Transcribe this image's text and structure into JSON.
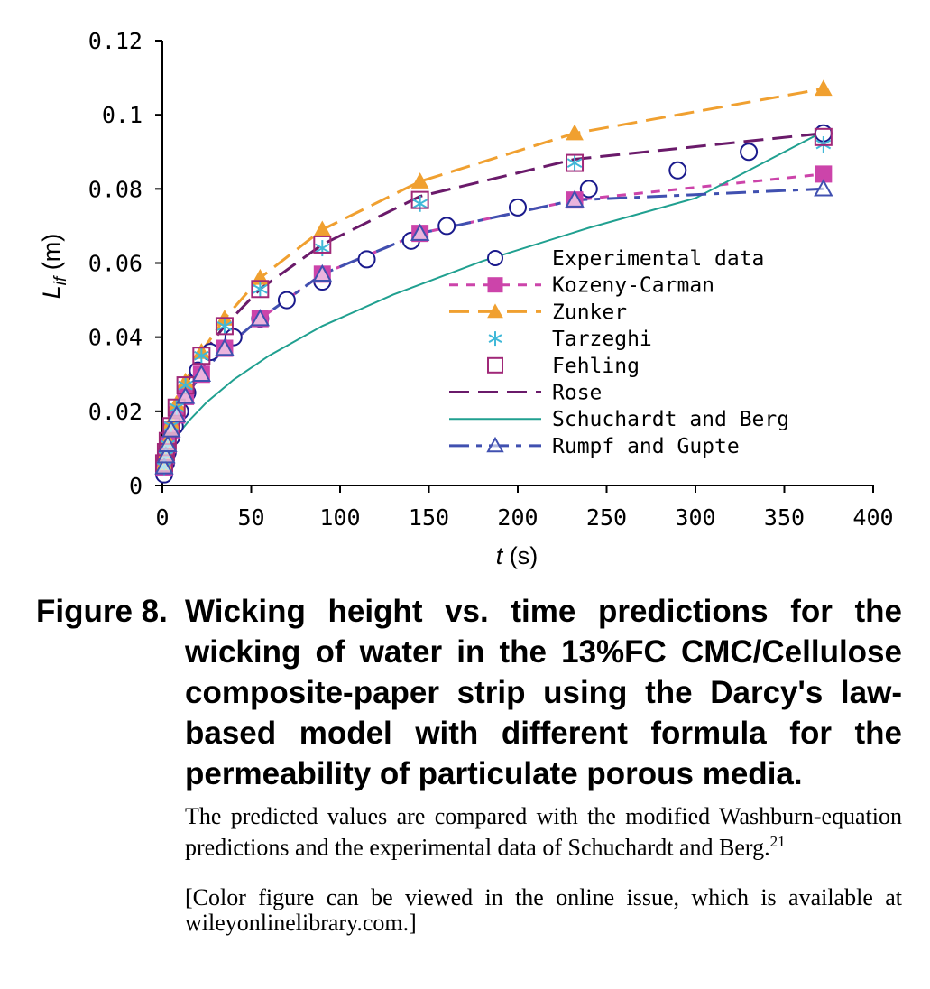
{
  "chart_data": {
    "type": "line",
    "xlabel_var": "t",
    "xlabel_unit": "(s)",
    "ylabel_var": "L",
    "ylabel_sub": "if",
    "ylabel_unit": "(m)",
    "xlim": [
      0,
      400
    ],
    "ylim": [
      0,
      0.12
    ],
    "xticks": [
      0,
      50,
      100,
      150,
      200,
      250,
      300,
      350,
      400
    ],
    "yticks": [
      0,
      0.02,
      0.04,
      0.06,
      0.08,
      0.1,
      0.12
    ],
    "xtick_labels": [
      "0",
      "50",
      "100",
      "150",
      "200",
      "250",
      "300",
      "350",
      "400"
    ],
    "ytick_labels": [
      "0",
      "0.02",
      "0.04",
      "0.06",
      "0.08",
      "0.1",
      "0.12"
    ],
    "grid": false,
    "legend_position": "center-right",
    "series": [
      {
        "name": "Experimental data",
        "color": "#1a1a8c",
        "line": "none",
        "marker": "circle-open",
        "x": [
          1,
          2,
          3,
          5,
          7,
          10,
          14,
          20,
          27,
          40,
          55,
          70,
          90,
          115,
          140,
          160,
          200,
          240,
          290,
          330,
          372
        ],
        "y": [
          0.003,
          0.006,
          0.009,
          0.013,
          0.016,
          0.02,
          0.025,
          0.031,
          0.036,
          0.04,
          0.045,
          0.05,
          0.055,
          0.061,
          0.066,
          0.07,
          0.075,
          0.08,
          0.085,
          0.09,
          0.095
        ]
      },
      {
        "name": "Kozeny-Carman",
        "color": "#cc44aa",
        "line": "dash",
        "marker": "square-filled",
        "x": [
          1,
          2,
          3,
          5,
          8,
          13,
          22,
          35,
          55,
          90,
          145,
          232,
          372
        ],
        "y": [
          0.005,
          0.008,
          0.011,
          0.015,
          0.019,
          0.024,
          0.03,
          0.037,
          0.045,
          0.057,
          0.068,
          0.077,
          0.084
        ]
      },
      {
        "name": "Zunker",
        "color": "#f0a030",
        "line": "longdash",
        "marker": "triangle-filled",
        "x": [
          1,
          2,
          3,
          5,
          8,
          13,
          22,
          35,
          55,
          90,
          145,
          232,
          372
        ],
        "y": [
          0.006,
          0.009,
          0.012,
          0.017,
          0.022,
          0.028,
          0.036,
          0.045,
          0.056,
          0.069,
          0.082,
          0.095,
          0.107
        ]
      },
      {
        "name": "Tarzeghi",
        "color": "#40b8d8",
        "line": "none",
        "marker": "asterisk",
        "x": [
          1,
          2,
          3,
          5,
          8,
          13,
          22,
          35,
          55,
          90,
          145,
          232,
          372
        ],
        "y": [
          0.005,
          0.008,
          0.011,
          0.016,
          0.021,
          0.027,
          0.035,
          0.043,
          0.053,
          0.064,
          0.076,
          0.087,
          0.092
        ]
      },
      {
        "name": "Fehling",
        "color": "#a02878",
        "line": "none",
        "marker": "square-open",
        "x": [
          1,
          2,
          3,
          5,
          8,
          13,
          22,
          35,
          55,
          90,
          145,
          232,
          372
        ],
        "y": [
          0.006,
          0.009,
          0.012,
          0.016,
          0.021,
          0.027,
          0.035,
          0.043,
          0.053,
          0.065,
          0.077,
          0.087,
          0.094
        ]
      },
      {
        "name": "Rose",
        "color": "#6a1a6a",
        "line": "longdash",
        "marker": "none",
        "x": [
          1,
          2,
          3,
          5,
          8,
          13,
          22,
          35,
          55,
          90,
          145,
          232,
          372
        ],
        "y": [
          0.005,
          0.008,
          0.011,
          0.016,
          0.021,
          0.027,
          0.035,
          0.043,
          0.053,
          0.065,
          0.078,
          0.088,
          0.095
        ]
      },
      {
        "name": "Schuchardt and Berg",
        "color": "#20a090",
        "line": "solid",
        "marker": "none",
        "x": [
          1,
          2,
          4,
          6,
          10,
          15,
          25,
          40,
          60,
          90,
          130,
          180,
          240,
          300,
          372
        ],
        "y": [
          0.0045,
          0.0065,
          0.009,
          0.011,
          0.0145,
          0.0175,
          0.0225,
          0.0285,
          0.035,
          0.043,
          0.0515,
          0.0605,
          0.0695,
          0.0775,
          0.0955
        ]
      },
      {
        "name": "Rumpf and Gupte",
        "color": "#4050b0",
        "line": "dashdot",
        "marker": "triangle-open",
        "x": [
          1,
          2,
          3,
          5,
          8,
          13,
          22,
          35,
          55,
          90,
          145,
          232,
          372
        ],
        "y": [
          0.005,
          0.008,
          0.011,
          0.015,
          0.019,
          0.024,
          0.03,
          0.037,
          0.045,
          0.057,
          0.068,
          0.077,
          0.08
        ]
      }
    ]
  },
  "caption": {
    "label": "Figure 8.",
    "title": "Wicking height vs. time predictions for the wicking of water in the 13%FC CMC/Cellulose composite-paper strip using the Darcy's law-based model with different formula for the permeability of particulate porous media.",
    "note1_text": "The predicted values are compared with the modified Washburn-equation predictions and the experimental data of Schuchardt and Berg.",
    "note1_ref": "21",
    "note2": "[Color figure can be viewed in the online issue, which is available at wileyonlinelibrary.com.]"
  }
}
